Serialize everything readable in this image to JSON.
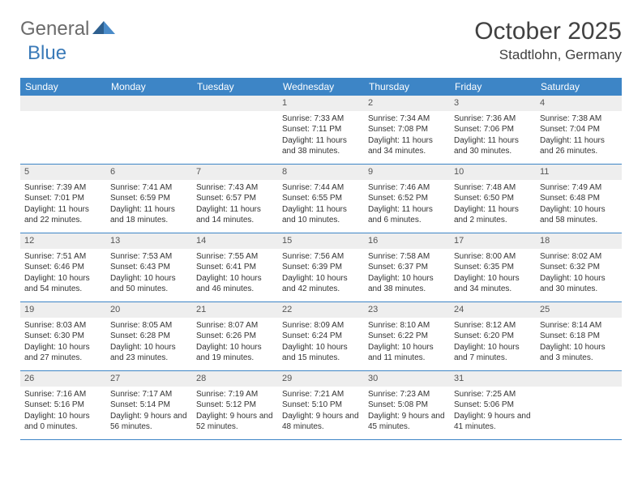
{
  "logo": {
    "text_general": "General",
    "text_blue": "Blue"
  },
  "title": "October 2025",
  "location": "Stadtlohn, Germany",
  "day_names": [
    "Sunday",
    "Monday",
    "Tuesday",
    "Wednesday",
    "Thursday",
    "Friday",
    "Saturday"
  ],
  "colors": {
    "header_bg": "#3d85c6",
    "header_text": "#ffffff",
    "day_number_bg": "#eeeeee",
    "border": "#3d85c6",
    "logo_blue": "#3a7ab8",
    "logo_gray": "#6b6b6b"
  },
  "weeks": [
    [
      null,
      null,
      null,
      {
        "num": "1",
        "sunrise": "7:33 AM",
        "sunset": "7:11 PM",
        "daylight": "11 hours and 38 minutes."
      },
      {
        "num": "2",
        "sunrise": "7:34 AM",
        "sunset": "7:08 PM",
        "daylight": "11 hours and 34 minutes."
      },
      {
        "num": "3",
        "sunrise": "7:36 AM",
        "sunset": "7:06 PM",
        "daylight": "11 hours and 30 minutes."
      },
      {
        "num": "4",
        "sunrise": "7:38 AM",
        "sunset": "7:04 PM",
        "daylight": "11 hours and 26 minutes."
      }
    ],
    [
      {
        "num": "5",
        "sunrise": "7:39 AM",
        "sunset": "7:01 PM",
        "daylight": "11 hours and 22 minutes."
      },
      {
        "num": "6",
        "sunrise": "7:41 AM",
        "sunset": "6:59 PM",
        "daylight": "11 hours and 18 minutes."
      },
      {
        "num": "7",
        "sunrise": "7:43 AM",
        "sunset": "6:57 PM",
        "daylight": "11 hours and 14 minutes."
      },
      {
        "num": "8",
        "sunrise": "7:44 AM",
        "sunset": "6:55 PM",
        "daylight": "11 hours and 10 minutes."
      },
      {
        "num": "9",
        "sunrise": "7:46 AM",
        "sunset": "6:52 PM",
        "daylight": "11 hours and 6 minutes."
      },
      {
        "num": "10",
        "sunrise": "7:48 AM",
        "sunset": "6:50 PM",
        "daylight": "11 hours and 2 minutes."
      },
      {
        "num": "11",
        "sunrise": "7:49 AM",
        "sunset": "6:48 PM",
        "daylight": "10 hours and 58 minutes."
      }
    ],
    [
      {
        "num": "12",
        "sunrise": "7:51 AM",
        "sunset": "6:46 PM",
        "daylight": "10 hours and 54 minutes."
      },
      {
        "num": "13",
        "sunrise": "7:53 AM",
        "sunset": "6:43 PM",
        "daylight": "10 hours and 50 minutes."
      },
      {
        "num": "14",
        "sunrise": "7:55 AM",
        "sunset": "6:41 PM",
        "daylight": "10 hours and 46 minutes."
      },
      {
        "num": "15",
        "sunrise": "7:56 AM",
        "sunset": "6:39 PM",
        "daylight": "10 hours and 42 minutes."
      },
      {
        "num": "16",
        "sunrise": "7:58 AM",
        "sunset": "6:37 PM",
        "daylight": "10 hours and 38 minutes."
      },
      {
        "num": "17",
        "sunrise": "8:00 AM",
        "sunset": "6:35 PM",
        "daylight": "10 hours and 34 minutes."
      },
      {
        "num": "18",
        "sunrise": "8:02 AM",
        "sunset": "6:32 PM",
        "daylight": "10 hours and 30 minutes."
      }
    ],
    [
      {
        "num": "19",
        "sunrise": "8:03 AM",
        "sunset": "6:30 PM",
        "daylight": "10 hours and 27 minutes."
      },
      {
        "num": "20",
        "sunrise": "8:05 AM",
        "sunset": "6:28 PM",
        "daylight": "10 hours and 23 minutes."
      },
      {
        "num": "21",
        "sunrise": "8:07 AM",
        "sunset": "6:26 PM",
        "daylight": "10 hours and 19 minutes."
      },
      {
        "num": "22",
        "sunrise": "8:09 AM",
        "sunset": "6:24 PM",
        "daylight": "10 hours and 15 minutes."
      },
      {
        "num": "23",
        "sunrise": "8:10 AM",
        "sunset": "6:22 PM",
        "daylight": "10 hours and 11 minutes."
      },
      {
        "num": "24",
        "sunrise": "8:12 AM",
        "sunset": "6:20 PM",
        "daylight": "10 hours and 7 minutes."
      },
      {
        "num": "25",
        "sunrise": "8:14 AM",
        "sunset": "6:18 PM",
        "daylight": "10 hours and 3 minutes."
      }
    ],
    [
      {
        "num": "26",
        "sunrise": "7:16 AM",
        "sunset": "5:16 PM",
        "daylight": "10 hours and 0 minutes."
      },
      {
        "num": "27",
        "sunrise": "7:17 AM",
        "sunset": "5:14 PM",
        "daylight": "9 hours and 56 minutes."
      },
      {
        "num": "28",
        "sunrise": "7:19 AM",
        "sunset": "5:12 PM",
        "daylight": "9 hours and 52 minutes."
      },
      {
        "num": "29",
        "sunrise": "7:21 AM",
        "sunset": "5:10 PM",
        "daylight": "9 hours and 48 minutes."
      },
      {
        "num": "30",
        "sunrise": "7:23 AM",
        "sunset": "5:08 PM",
        "daylight": "9 hours and 45 minutes."
      },
      {
        "num": "31",
        "sunrise": "7:25 AM",
        "sunset": "5:06 PM",
        "daylight": "9 hours and 41 minutes."
      },
      null
    ]
  ]
}
